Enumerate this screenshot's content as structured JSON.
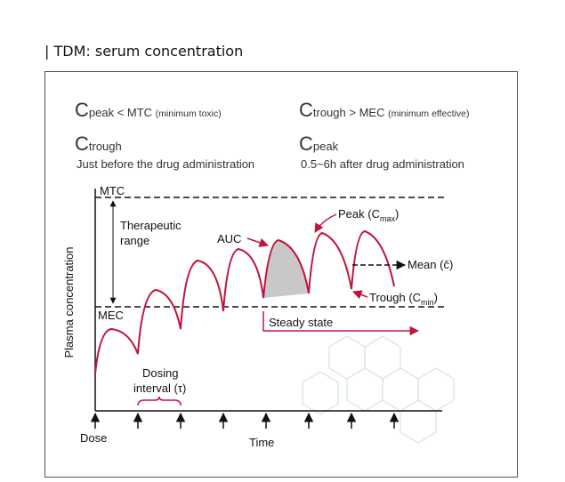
{
  "header": {
    "title": "| TDM: serum concentration"
  },
  "notes": [
    {
      "letter": "C",
      "text": "peak < MTC ",
      "small": "(minimum toxic)"
    },
    {
      "letter": "C",
      "text": "trough > MEC ",
      "small": "(minimum effective)"
    },
    {
      "letter": "C",
      "text": "trough",
      "desc": "Just before the drug administration"
    },
    {
      "letter": "C",
      "text": "peak",
      "desc": "0.5~6h after drug administration"
    }
  ],
  "diagram": {
    "y_axis": "Plasma concentration",
    "x_axis": "Time",
    "dose": "Dose",
    "mtc": "MTC",
    "mec": "MEC",
    "range": [
      "Therapeutic",
      "range"
    ],
    "auc": "AUC",
    "peak": {
      "text": "Peak (C",
      "sub": "max",
      "end": ")"
    },
    "mean": "Mean (c̄)",
    "trough": {
      "text": "Trough (C",
      "sub": "min",
      "end": ")"
    },
    "steady": "Steady state",
    "interval": [
      "Dosing",
      "interval (τ)"
    ]
  }
}
